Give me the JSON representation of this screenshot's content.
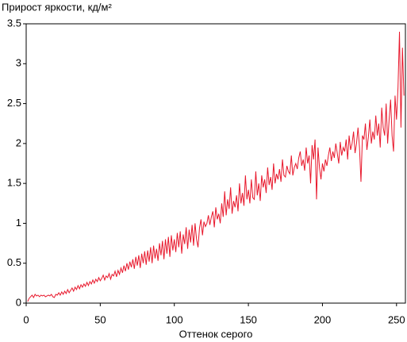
{
  "chart_data": {
    "type": "line",
    "title": "Прирост яркости, кд/м²",
    "xlabel": "Оттенок серого",
    "color": "#e8182c",
    "x": [
      1,
      2,
      3,
      4,
      5,
      6,
      7,
      8,
      9,
      10,
      11,
      12,
      13,
      14,
      15,
      16,
      17,
      18,
      19,
      20,
      21,
      22,
      23,
      24,
      25,
      26,
      27,
      28,
      29,
      30,
      31,
      32,
      33,
      34,
      35,
      36,
      37,
      38,
      39,
      40,
      41,
      42,
      43,
      44,
      45,
      46,
      47,
      48,
      49,
      50,
      51,
      52,
      53,
      54,
      55,
      56,
      57,
      58,
      59,
      60,
      61,
      62,
      63,
      64,
      65,
      66,
      67,
      68,
      69,
      70,
      71,
      72,
      73,
      74,
      75,
      76,
      77,
      78,
      79,
      80,
      81,
      82,
      83,
      84,
      85,
      86,
      87,
      88,
      89,
      90,
      91,
      92,
      93,
      94,
      95,
      96,
      97,
      98,
      99,
      100,
      101,
      102,
      103,
      104,
      105,
      106,
      107,
      108,
      109,
      110,
      111,
      112,
      113,
      114,
      115,
      116,
      117,
      118,
      119,
      120,
      121,
      122,
      123,
      124,
      125,
      126,
      127,
      128,
      129,
      130,
      131,
      132,
      133,
      134,
      135,
      136,
      137,
      138,
      139,
      140,
      141,
      142,
      143,
      144,
      145,
      146,
      147,
      148,
      149,
      150,
      151,
      152,
      153,
      154,
      155,
      156,
      157,
      158,
      159,
      160,
      161,
      162,
      163,
      164,
      165,
      166,
      167,
      168,
      169,
      170,
      171,
      172,
      173,
      174,
      175,
      176,
      177,
      178,
      179,
      180,
      181,
      182,
      183,
      184,
      185,
      186,
      187,
      188,
      189,
      190,
      191,
      192,
      193,
      194,
      195,
      196,
      197,
      198,
      199,
      200,
      201,
      202,
      203,
      204,
      205,
      206,
      207,
      208,
      209,
      210,
      211,
      212,
      213,
      214,
      215,
      216,
      217,
      218,
      219,
      220,
      221,
      222,
      223,
      224,
      225,
      226,
      227,
      228,
      229,
      230,
      231,
      232,
      233,
      234,
      235,
      236,
      237,
      238,
      239,
      240,
      241,
      242,
      243,
      244,
      245,
      246,
      247,
      248,
      249,
      250,
      251,
      252,
      253,
      254,
      255
    ],
    "values": [
      0.02,
      0.06,
      0.08,
      0.1,
      0.07,
      0.11,
      0.09,
      0.1,
      0.08,
      0.1,
      0.09,
      0.1,
      0.08,
      0.09,
      0.1,
      0.09,
      0.11,
      0.08,
      0.07,
      0.11,
      0.1,
      0.13,
      0.1,
      0.14,
      0.11,
      0.15,
      0.12,
      0.17,
      0.13,
      0.16,
      0.19,
      0.15,
      0.2,
      0.17,
      0.22,
      0.18,
      0.23,
      0.2,
      0.24,
      0.21,
      0.26,
      0.22,
      0.27,
      0.24,
      0.29,
      0.25,
      0.3,
      0.27,
      0.32,
      0.28,
      0.31,
      0.35,
      0.29,
      0.34,
      0.32,
      0.37,
      0.3,
      0.36,
      0.34,
      0.4,
      0.33,
      0.41,
      0.36,
      0.44,
      0.38,
      0.47,
      0.4,
      0.5,
      0.42,
      0.52,
      0.45,
      0.55,
      0.43,
      0.58,
      0.47,
      0.6,
      0.44,
      0.62,
      0.5,
      0.65,
      0.48,
      0.66,
      0.52,
      0.7,
      0.5,
      0.72,
      0.56,
      0.68,
      0.53,
      0.75,
      0.6,
      0.78,
      0.55,
      0.8,
      0.62,
      0.83,
      0.58,
      0.85,
      0.66,
      0.8,
      0.64,
      0.88,
      0.7,
      0.9,
      0.62,
      0.86,
      0.74,
      0.95,
      0.68,
      0.92,
      0.76,
      0.98,
      0.72,
      1.0,
      0.8,
      0.7,
      0.94,
      1.05,
      0.85,
      1.02,
      0.96,
      1.0,
      1.1,
      0.98,
      1.08,
      1.15,
      0.95,
      1.2,
      1.05,
      1.12,
      1.0,
      1.25,
      1.08,
      1.4,
      1.1,
      1.3,
      1.18,
      1.45,
      1.12,
      1.28,
      1.2,
      1.35,
      1.15,
      1.5,
      1.25,
      1.38,
      1.22,
      1.6,
      1.3,
      1.42,
      1.25,
      1.55,
      1.32,
      1.3,
      1.65,
      1.35,
      1.5,
      1.28,
      1.6,
      1.45,
      1.55,
      1.38,
      1.7,
      1.48,
      1.58,
      1.42,
      1.75,
      1.5,
      1.62,
      1.55,
      1.68,
      1.52,
      1.8,
      1.6,
      1.58,
      1.72,
      1.65,
      1.62,
      1.85,
      1.6,
      1.7,
      1.75,
      1.68,
      1.82,
      1.9,
      1.72,
      1.8,
      1.66,
      1.95,
      1.75,
      1.85,
      1.5,
      1.98,
      1.8,
      2.05,
      1.3,
      1.95,
      1.7,
      1.55,
      1.75,
      1.65,
      1.8,
      1.72,
      1.85,
      1.95,
      1.78,
      1.9,
      1.82,
      2.0,
      1.88,
      1.75,
      2.02,
      1.85,
      1.95,
      1.9,
      2.05,
      1.8,
      2.1,
      1.92,
      2.0,
      2.15,
      1.88,
      2.0,
      2.2,
      1.95,
      1.52,
      2.1,
      2.05,
      2.25,
      1.92,
      2.08,
      2.3,
      2.0,
      2.15,
      2.05,
      2.35,
      2.1,
      2.25,
      1.95,
      2.45,
      2.2,
      2.1,
      2.5,
      2.0,
      2.3,
      2.55,
      2.1,
      1.9,
      2.6,
      2.3,
      2.7,
      3.4,
      2.2,
      3.2,
      2.6
    ],
    "xlim": [
      0,
      256
    ],
    "ylim": [
      0,
      3.5
    ],
    "xticks": [
      0,
      50,
      100,
      150,
      200,
      250
    ],
    "yticks": [
      0,
      0.5,
      1,
      1.5,
      2,
      2.5,
      3,
      3.5
    ]
  }
}
